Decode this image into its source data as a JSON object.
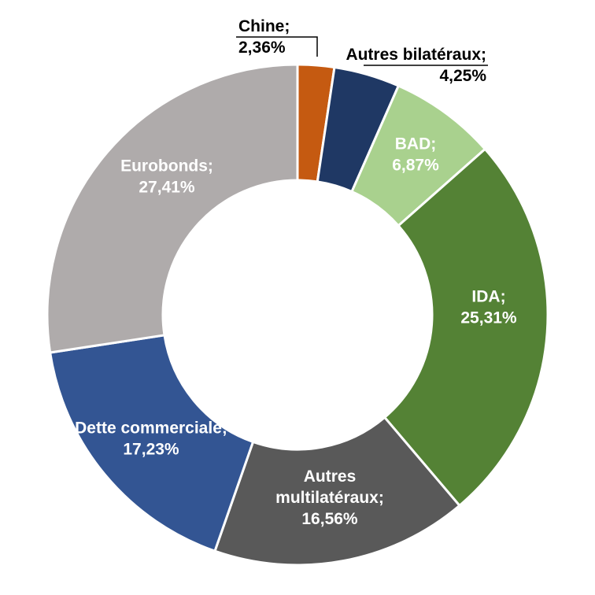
{
  "chart_data": {
    "type": "pie",
    "subtype": "donut",
    "title": "",
    "legend": "none",
    "background_color": "#FFFFFF",
    "inside_label_color": "#FFFFFF",
    "outside_label_color": "#000000",
    "slice_border_color": "#FFFFFF",
    "unit": "%",
    "decimal_separator": ",",
    "start_angle_deg": 0,
    "direction": "clockwise",
    "inner_radius_ratio": 0.54,
    "series": [
      {
        "id": "chine",
        "label": "Chine",
        "value": 2.36,
        "display": "2,36%",
        "color": "#C55A11",
        "label_placement": "outside",
        "label_lines": [
          "Chine;",
          "2,36%"
        ]
      },
      {
        "id": "autres-bilateraux",
        "label": "Autres bilatéraux",
        "value": 4.25,
        "display": "4,25%",
        "color": "#1F3864",
        "label_placement": "outside",
        "label_lines": [
          "Autres bilatéraux;",
          "4,25%"
        ]
      },
      {
        "id": "bad",
        "label": "BAD",
        "value": 6.87,
        "display": "6,87%",
        "color": "#A9D18E",
        "label_placement": "inside",
        "label_lines": [
          "BAD;",
          "6,87%"
        ]
      },
      {
        "id": "ida",
        "label": "IDA",
        "value": 25.31,
        "display": "25,31%",
        "color": "#548235",
        "label_placement": "inside",
        "label_lines": [
          "IDA;",
          "25,31%"
        ]
      },
      {
        "id": "autres-multilateraux",
        "label": "Autres multilatéraux",
        "value": 16.56,
        "display": "16,56%",
        "color": "#595959",
        "label_placement": "inside",
        "label_lines": [
          "Autres",
          "multilatéraux;",
          "16,56%"
        ]
      },
      {
        "id": "dette-commerciale",
        "label": "Dette commerciale",
        "value": 17.23,
        "display": "17,23%",
        "color": "#335593",
        "label_placement": "inside",
        "label_lines": [
          "Dette commerciale;",
          "17,23%"
        ]
      },
      {
        "id": "eurobonds",
        "label": "Eurobonds",
        "value": 27.41,
        "display": "27,41%",
        "color": "#AFABAB",
        "label_placement": "inside",
        "label_lines": [
          "Eurobonds;",
          "27,41%"
        ]
      }
    ]
  }
}
